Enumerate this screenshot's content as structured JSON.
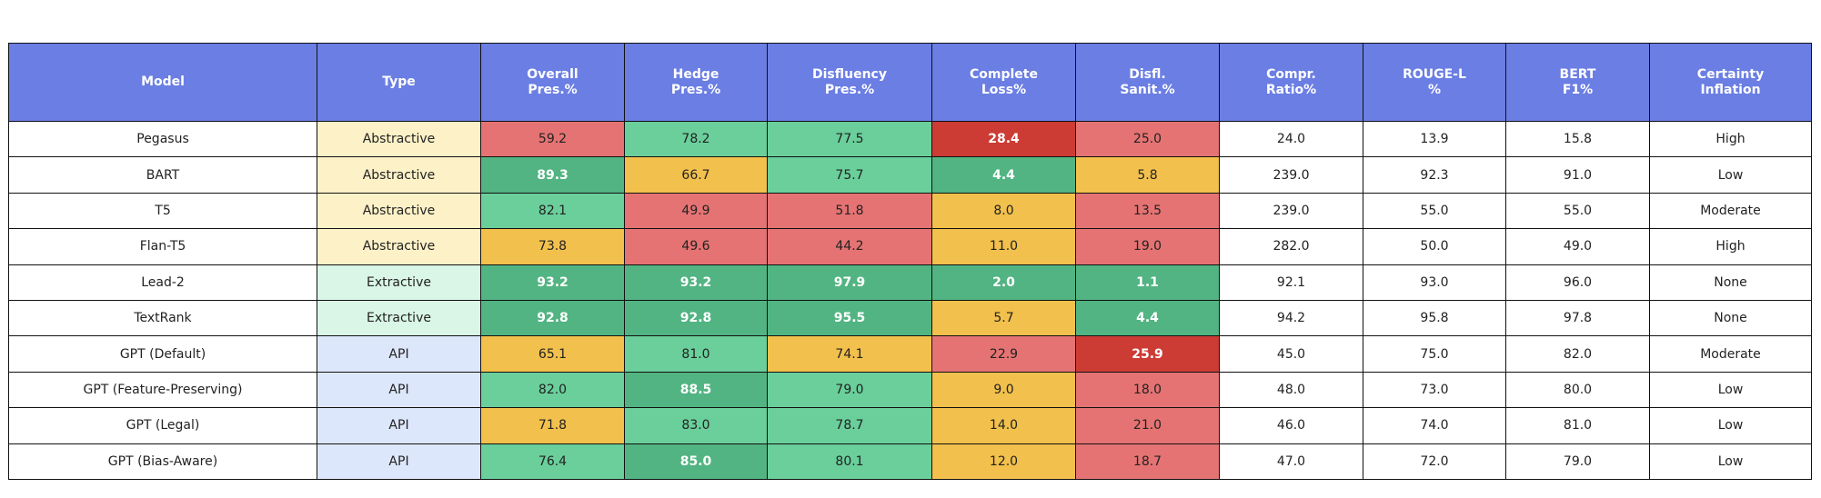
{
  "chart_data": {
    "type": "table",
    "columns": [
      "Model",
      "Type",
      "Overall\nPres.%",
      "Hedge\nPres.%",
      "Disfluency\nPres.%",
      "Complete\nLoss%",
      "Disfl.\nSanit.%",
      "Compr.\nRatio%",
      "ROUGE-L\n%",
      "BERT\nF1%",
      "Certainty\nInflation"
    ],
    "rows": [
      [
        "Pegasus",
        "Abstractive",
        "59.2",
        "78.2",
        "77.5",
        "28.4",
        "25.0",
        "24.0",
        "13.9",
        "15.8",
        "High"
      ],
      [
        "BART",
        "Abstractive",
        "89.3",
        "66.7",
        "75.7",
        "4.4",
        "5.8",
        "239.0",
        "92.3",
        "91.0",
        "Low"
      ],
      [
        "T5",
        "Abstractive",
        "82.1",
        "49.9",
        "51.8",
        "8.0",
        "13.5",
        "239.0",
        "55.0",
        "55.0",
        "Moderate"
      ],
      [
        "Flan-T5",
        "Abstractive",
        "73.8",
        "49.6",
        "44.2",
        "11.0",
        "19.0",
        "282.0",
        "50.0",
        "49.0",
        "High"
      ],
      [
        "Lead-2",
        "Extractive",
        "93.2",
        "93.2",
        "97.9",
        "2.0",
        "1.1",
        "92.1",
        "93.0",
        "96.0",
        "None"
      ],
      [
        "TextRank",
        "Extractive",
        "92.8",
        "92.8",
        "95.5",
        "5.7",
        "4.4",
        "94.2",
        "95.8",
        "97.8",
        "None"
      ],
      [
        "GPT (Default)",
        "API",
        "65.1",
        "81.0",
        "74.1",
        "22.9",
        "25.9",
        "45.0",
        "75.0",
        "82.0",
        "Moderate"
      ],
      [
        "GPT (Feature-Preserving)",
        "API",
        "82.0",
        "88.5",
        "79.0",
        "9.0",
        "18.0",
        "48.0",
        "73.0",
        "80.0",
        "Low"
      ],
      [
        "GPT (Legal)",
        "API",
        "71.8",
        "83.0",
        "78.7",
        "14.0",
        "21.0",
        "46.0",
        "74.0",
        "81.0",
        "Low"
      ],
      [
        "GPT (Bias-Aware)",
        "API",
        "76.4",
        "85.0",
        "80.1",
        "12.0",
        "18.7",
        "47.0",
        "72.0",
        "79.0",
        "Low"
      ]
    ],
    "cell_colors": [
      [
        "#ffffff",
        "#fdf1c7",
        "#e57373",
        "#6acf9b",
        "#6acf9b",
        "#cc3c34",
        "#e57373",
        "#ffffff",
        "#ffffff",
        "#ffffff",
        "#ffffff"
      ],
      [
        "#ffffff",
        "#fdf1c7",
        "#52b482",
        "#f2c04c",
        "#6acf9b",
        "#52b482",
        "#f2c04c",
        "#ffffff",
        "#ffffff",
        "#ffffff",
        "#ffffff"
      ],
      [
        "#ffffff",
        "#fdf1c7",
        "#6acf9b",
        "#e57373",
        "#e57373",
        "#f2c04c",
        "#e57373",
        "#ffffff",
        "#ffffff",
        "#ffffff",
        "#ffffff"
      ],
      [
        "#ffffff",
        "#fdf1c7",
        "#f2c04c",
        "#e57373",
        "#e57373",
        "#f2c04c",
        "#e57373",
        "#ffffff",
        "#ffffff",
        "#ffffff",
        "#ffffff"
      ],
      [
        "#ffffff",
        "#d9f6e6",
        "#52b482",
        "#52b482",
        "#52b482",
        "#52b482",
        "#52b482",
        "#ffffff",
        "#ffffff",
        "#ffffff",
        "#ffffff"
      ],
      [
        "#ffffff",
        "#d9f6e6",
        "#52b482",
        "#52b482",
        "#52b482",
        "#f2c04c",
        "#52b482",
        "#ffffff",
        "#ffffff",
        "#ffffff",
        "#ffffff"
      ],
      [
        "#ffffff",
        "#dde7fb",
        "#f2c04c",
        "#6acf9b",
        "#f2c04c",
        "#e57373",
        "#cc3c34",
        "#ffffff",
        "#ffffff",
        "#ffffff",
        "#ffffff"
      ],
      [
        "#ffffff",
        "#dde7fb",
        "#6acf9b",
        "#52b482",
        "#6acf9b",
        "#f2c04c",
        "#e57373",
        "#ffffff",
        "#ffffff",
        "#ffffff",
        "#ffffff"
      ],
      [
        "#ffffff",
        "#dde7fb",
        "#f2c04c",
        "#6acf9b",
        "#6acf9b",
        "#f2c04c",
        "#e57373",
        "#ffffff",
        "#ffffff",
        "#ffffff",
        "#ffffff"
      ],
      [
        "#ffffff",
        "#dde7fb",
        "#6acf9b",
        "#52b482",
        "#6acf9b",
        "#f2c04c",
        "#e57373",
        "#ffffff",
        "#ffffff",
        "#ffffff",
        "#ffffff"
      ]
    ],
    "bold_white_cells": [
      [
        0,
        5
      ],
      [
        1,
        2
      ],
      [
        1,
        5
      ],
      [
        4,
        2
      ],
      [
        4,
        3
      ],
      [
        4,
        4
      ],
      [
        4,
        5
      ],
      [
        4,
        6
      ],
      [
        5,
        2
      ],
      [
        5,
        3
      ],
      [
        5,
        4
      ],
      [
        5,
        6
      ],
      [
        6,
        6
      ],
      [
        7,
        3
      ],
      [
        9,
        3
      ]
    ],
    "colors": {
      "header_bg": "#6b7ee3",
      "header_text": "#ffffff",
      "border": "#111111"
    }
  }
}
